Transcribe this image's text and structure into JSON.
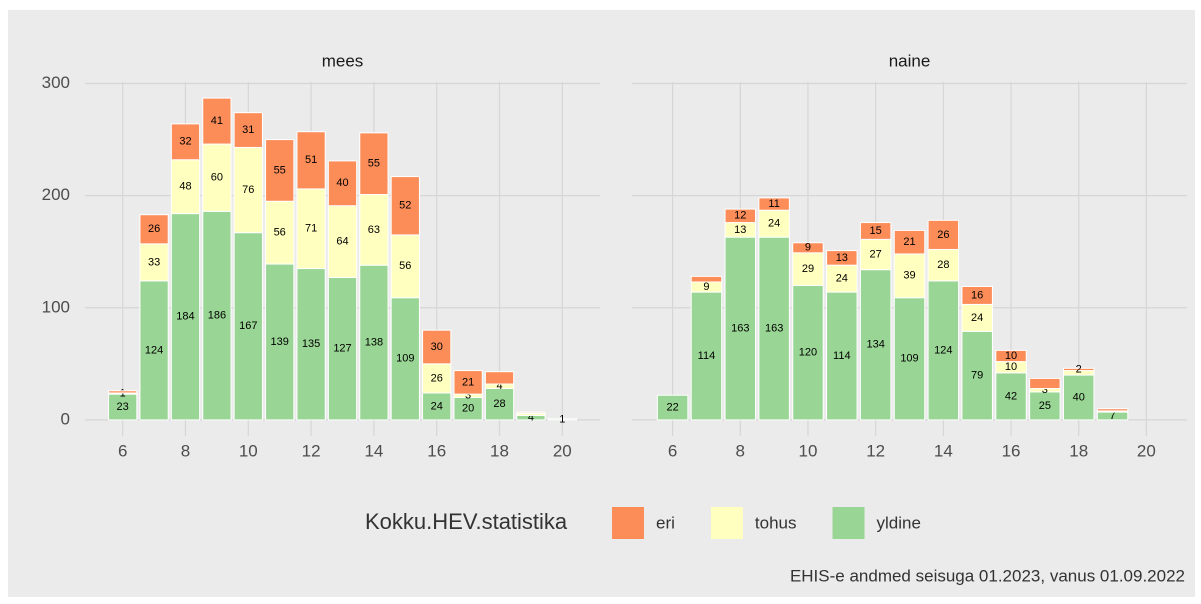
{
  "chart_data": {
    "type": "bar",
    "stacked": true,
    "legend_title": "Kokku.HEV.statistika",
    "caption": "EHIS-e andmed seisuga 01.2023, vanus 01.09.2022",
    "series": [
      {
        "name": "eri",
        "color": "#fc8d59"
      },
      {
        "name": "tohus",
        "color": "#ffffbf"
      },
      {
        "name": "yldine",
        "color": "#99d594"
      }
    ],
    "xlim": [
      4.8,
      21.2
    ],
    "xticks": [
      6,
      8,
      10,
      12,
      14,
      16,
      18,
      20
    ],
    "ylim": [
      -14.35,
      301.35
    ],
    "yticks": [
      0,
      100,
      200,
      300
    ],
    "grid": true,
    "panels": [
      {
        "title": "mees",
        "x": [
          6,
          7,
          8,
          9,
          10,
          11,
          12,
          13,
          14,
          15,
          16,
          17,
          18,
          19,
          20
        ],
        "values": [
          [
            2,
            26,
            32,
            41,
            31,
            55,
            51,
            40,
            55,
            52,
            30,
            21,
            11,
            1,
            0
          ],
          [
            1,
            33,
            48,
            60,
            76,
            56,
            71,
            64,
            63,
            56,
            26,
            3,
            4,
            2,
            0
          ],
          [
            23,
            124,
            184,
            186,
            167,
            139,
            135,
            127,
            138,
            109,
            24,
            20,
            28,
            4,
            1
          ]
        ],
        "value_labels": [
          [
            null,
            "26",
            "32",
            "41",
            "31",
            "55",
            "51",
            "40",
            "55",
            "52",
            "30",
            "21",
            null,
            null,
            null
          ],
          [
            "1",
            "33",
            "48",
            "60",
            "76",
            "56",
            "71",
            "64",
            "63",
            "56",
            "26",
            "3",
            "4",
            null,
            null
          ],
          [
            "23",
            "124",
            "184",
            "186",
            "167",
            "139",
            "135",
            "127",
            "138",
            "109",
            "24",
            "20",
            "28",
            "4",
            "1"
          ]
        ]
      },
      {
        "title": "naine",
        "x": [
          6,
          7,
          8,
          9,
          10,
          11,
          12,
          13,
          14,
          15,
          16,
          17,
          18,
          19
        ],
        "values": [
          [
            0,
            5,
            12,
            11,
            9,
            13,
            15,
            21,
            26,
            16,
            10,
            9,
            2,
            2
          ],
          [
            0,
            9,
            13,
            24,
            29,
            24,
            27,
            39,
            28,
            24,
            10,
            3,
            4,
            1
          ],
          [
            22,
            114,
            163,
            163,
            120,
            114,
            134,
            109,
            124,
            79,
            42,
            25,
            40,
            7
          ]
        ],
        "value_labels": [
          [
            null,
            null,
            "12",
            "11",
            "9",
            "13",
            "15",
            "21",
            "26",
            "16",
            "10",
            null,
            "2",
            null
          ],
          [
            null,
            "9",
            "13",
            "24",
            "29",
            "24",
            "27",
            "39",
            "28",
            "24",
            "10",
            "3",
            null,
            null
          ],
          [
            "22",
            "114",
            "163",
            "163",
            "120",
            "114",
            "134",
            "109",
            "124",
            "79",
            "42",
            "25",
            "40",
            "7"
          ]
        ]
      }
    ]
  }
}
